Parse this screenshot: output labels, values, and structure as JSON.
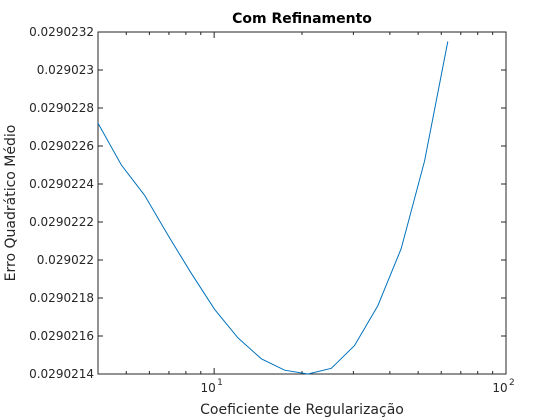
{
  "chart_data": {
    "type": "line",
    "title": "Com Refinamento",
    "xlabel": "Coeficiente de Regularização",
    "ylabel": "Erro Quadrático Médio",
    "x_scale": "log",
    "y_scale": "linear",
    "xlim": [
      4,
      100
    ],
    "ylim": [
      0.0290214,
      0.0290232
    ],
    "grid": false,
    "legend": "none",
    "x_ticks": [
      {
        "value": 10,
        "label": "10",
        "exp": "1"
      },
      {
        "value": 100,
        "label": "10",
        "exp": "2"
      }
    ],
    "y_ticks": [
      {
        "value": 0.0290214,
        "label": "0.0290214"
      },
      {
        "value": 0.0290216,
        "label": "0.0290216"
      },
      {
        "value": 0.0290218,
        "label": "0.0290218"
      },
      {
        "value": 0.029022,
        "label": "0.029022"
      },
      {
        "value": 0.0290222,
        "label": "0.0290222"
      },
      {
        "value": 0.0290224,
        "label": "0.0290224"
      },
      {
        "value": 0.0290226,
        "label": "0.0290226"
      },
      {
        "value": 0.0290228,
        "label": "0.0290228"
      },
      {
        "value": 0.029023,
        "label": "0.029023"
      },
      {
        "value": 0.0290232,
        "label": "0.0290232"
      }
    ],
    "series": [
      {
        "color": "#0072bd",
        "x": [
          4.0,
          4.81,
          5.78,
          6.95,
          8.35,
          10.04,
          12.07,
          14.51,
          17.44,
          20.96,
          25.2,
          30.28,
          36.39,
          43.74,
          52.58,
          63.18
        ],
        "y": [
          0.02902272,
          0.0290225,
          0.02902234,
          0.02902213,
          0.02902193,
          0.02902174,
          0.02902159,
          0.02902148,
          0.02902142,
          0.0290214,
          0.02902143,
          0.02902155,
          0.02902176,
          0.02902206,
          0.02902252,
          0.02902315
        ]
      }
    ]
  },
  "colors": {
    "axes": "#262626",
    "line": "#0072bd",
    "background": "#ffffff"
  }
}
